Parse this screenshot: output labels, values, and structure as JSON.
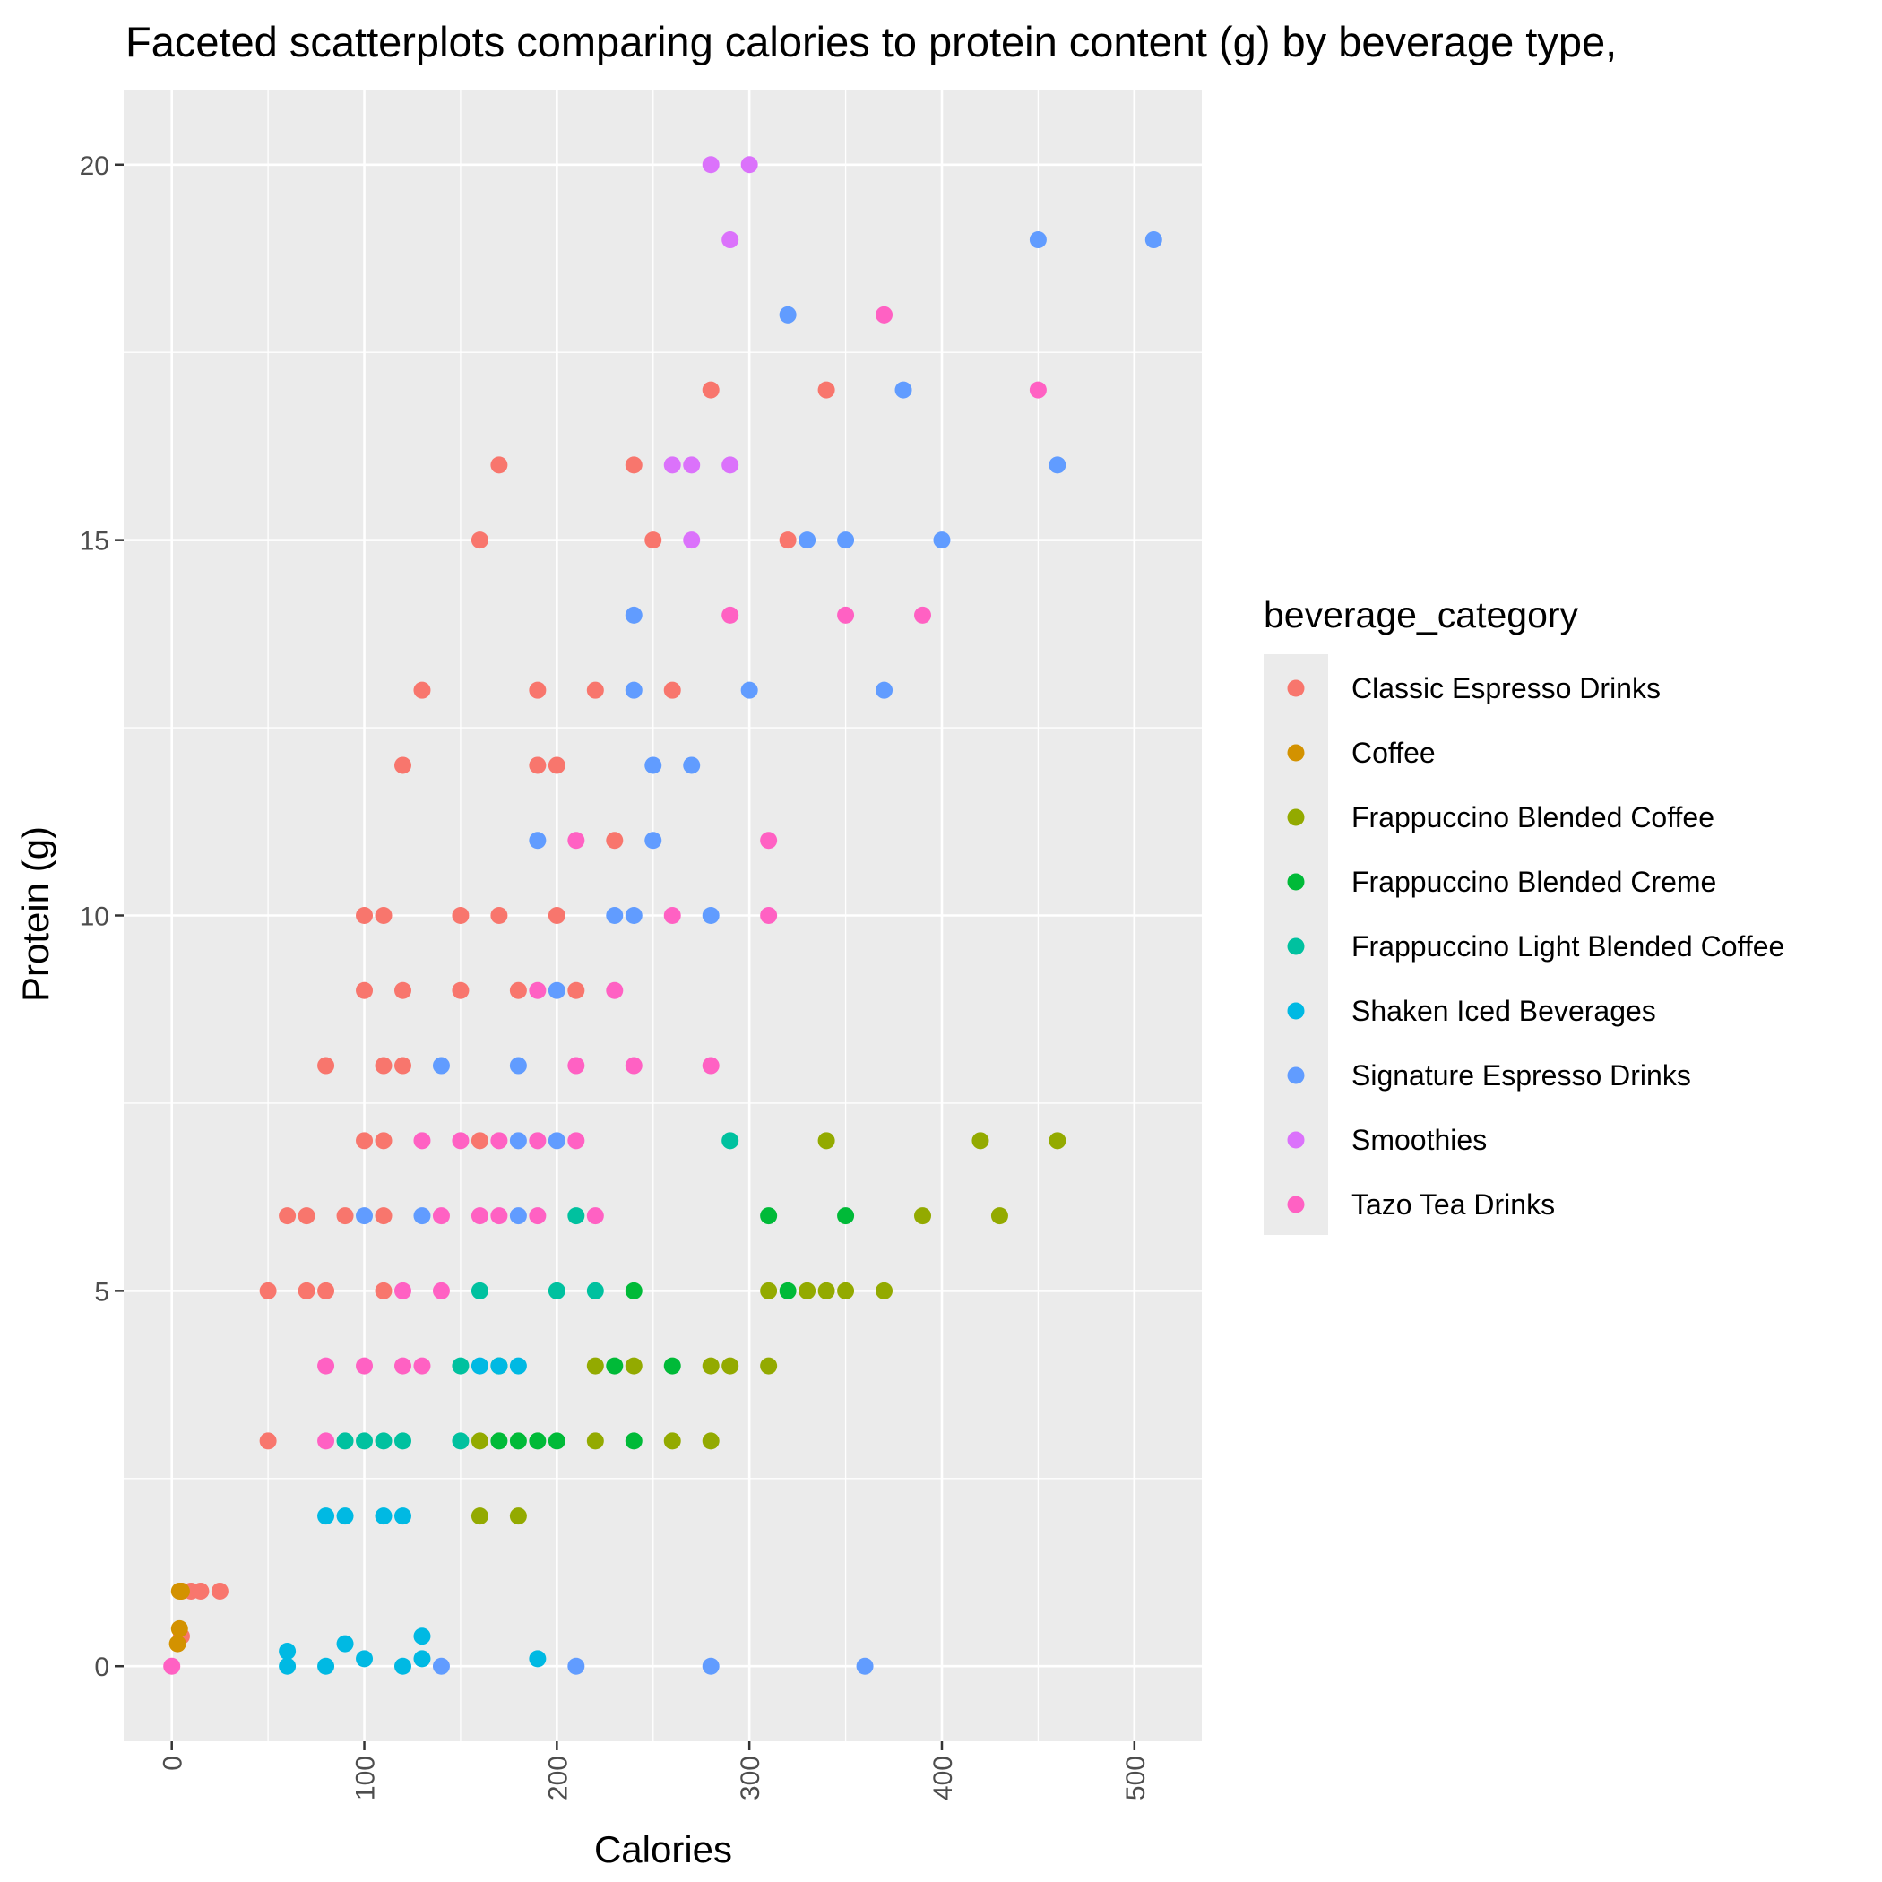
{
  "chart_data": {
    "type": "scatter",
    "title": "Faceted scatterplots comparing calories to protein content (g) by beverage type,",
    "xlabel": "Calories",
    "ylabel": "Protein (g)",
    "xlim": [
      -25,
      535
    ],
    "ylim": [
      -1,
      21
    ],
    "x_ticks": [
      0,
      100,
      200,
      300,
      400,
      500
    ],
    "x_tick_labels": [
      "0",
      "100",
      "200",
      "300",
      "400",
      "500"
    ],
    "y_ticks": [
      0,
      5,
      10,
      15,
      20
    ],
    "y_tick_labels": [
      "0",
      "5",
      "10",
      "15",
      "20"
    ],
    "grid": true,
    "legend": {
      "title": "beverage_category",
      "placement": "right"
    },
    "series": [
      {
        "name": "Classic Espresso Drinks",
        "color": "#F8766D",
        "points": [
          [
            5,
            1
          ],
          [
            10,
            1
          ],
          [
            15,
            1
          ],
          [
            25,
            1
          ],
          [
            5,
            0.4
          ],
          [
            50,
            5
          ],
          [
            50,
            3
          ],
          [
            60,
            6
          ],
          [
            70,
            6
          ],
          [
            70,
            5
          ],
          [
            80,
            5
          ],
          [
            80,
            8
          ],
          [
            90,
            6
          ],
          [
            100,
            10
          ],
          [
            100,
            9
          ],
          [
            100,
            7
          ],
          [
            110,
            10
          ],
          [
            110,
            8
          ],
          [
            110,
            7
          ],
          [
            110,
            6
          ],
          [
            110,
            5
          ],
          [
            120,
            12
          ],
          [
            120,
            9
          ],
          [
            120,
            8
          ],
          [
            130,
            13
          ],
          [
            150,
            10
          ],
          [
            150,
            9
          ],
          [
            160,
            15
          ],
          [
            160,
            7
          ],
          [
            170,
            16
          ],
          [
            170,
            10
          ],
          [
            180,
            9
          ],
          [
            190,
            13
          ],
          [
            190,
            12
          ],
          [
            200,
            12
          ],
          [
            200,
            10
          ],
          [
            210,
            9
          ],
          [
            220,
            13
          ],
          [
            230,
            11
          ],
          [
            240,
            16
          ],
          [
            250,
            15
          ],
          [
            260,
            13
          ],
          [
            280,
            17
          ],
          [
            320,
            15
          ],
          [
            340,
            17
          ]
        ]
      },
      {
        "name": "Coffee",
        "color": "#D39200",
        "points": [
          [
            3,
            0.3
          ],
          [
            4,
            0.5
          ],
          [
            4,
            1
          ],
          [
            5,
            1
          ]
        ]
      },
      {
        "name": "Frappuccino Blended Coffee",
        "color": "#93AA00",
        "points": [
          [
            160,
            3
          ],
          [
            160,
            2
          ],
          [
            180,
            2
          ],
          [
            220,
            4
          ],
          [
            220,
            3
          ],
          [
            240,
            4
          ],
          [
            260,
            3
          ],
          [
            280,
            4
          ],
          [
            280,
            3
          ],
          [
            290,
            4
          ],
          [
            310,
            5
          ],
          [
            310,
            4
          ],
          [
            330,
            5
          ],
          [
            340,
            7
          ],
          [
            340,
            5
          ],
          [
            350,
            5
          ],
          [
            370,
            5
          ],
          [
            390,
            6
          ],
          [
            420,
            7
          ],
          [
            430,
            6
          ],
          [
            460,
            7
          ]
        ]
      },
      {
        "name": "Frappuccino Blended Creme",
        "color": "#00BA38",
        "points": [
          [
            170,
            4
          ],
          [
            170,
            3
          ],
          [
            180,
            3
          ],
          [
            190,
            3
          ],
          [
            200,
            3
          ],
          [
            230,
            4
          ],
          [
            240,
            5
          ],
          [
            240,
            3
          ],
          [
            260,
            4
          ],
          [
            310,
            6
          ],
          [
            320,
            5
          ],
          [
            350,
            6
          ]
        ]
      },
      {
        "name": "Frappuccino Light Blended Coffee",
        "color": "#00C19F",
        "points": [
          [
            90,
            3
          ],
          [
            100,
            3
          ],
          [
            110,
            3
          ],
          [
            120,
            3
          ],
          [
            150,
            4
          ],
          [
            150,
            3
          ],
          [
            160,
            5
          ],
          [
            200,
            5
          ],
          [
            210,
            6
          ],
          [
            220,
            5
          ],
          [
            290,
            7
          ]
        ]
      },
      {
        "name": "Shaken Iced Beverages",
        "color": "#00B9E3",
        "points": [
          [
            60,
            0.2
          ],
          [
            60,
            0
          ],
          [
            80,
            2
          ],
          [
            80,
            0
          ],
          [
            90,
            2
          ],
          [
            90,
            0.3
          ],
          [
            100,
            0.1
          ],
          [
            110,
            2
          ],
          [
            120,
            2
          ],
          [
            120,
            0
          ],
          [
            130,
            0.4
          ],
          [
            130,
            0.1
          ],
          [
            160,
            4
          ],
          [
            170,
            4
          ],
          [
            180,
            4
          ],
          [
            190,
            0.1
          ]
        ]
      },
      {
        "name": "Signature Espresso Drinks",
        "color": "#619CFF",
        "points": [
          [
            100,
            6
          ],
          [
            130,
            6
          ],
          [
            140,
            8
          ],
          [
            140,
            0
          ],
          [
            180,
            8
          ],
          [
            180,
            7
          ],
          [
            180,
            6
          ],
          [
            190,
            11
          ],
          [
            200,
            9
          ],
          [
            200,
            7
          ],
          [
            210,
            0
          ],
          [
            230,
            10
          ],
          [
            240,
            14
          ],
          [
            240,
            13
          ],
          [
            240,
            10
          ],
          [
            250,
            12
          ],
          [
            250,
            11
          ],
          [
            270,
            12
          ],
          [
            280,
            10
          ],
          [
            280,
            0
          ],
          [
            300,
            13
          ],
          [
            320,
            18
          ],
          [
            330,
            15
          ],
          [
            350,
            15
          ],
          [
            360,
            0
          ],
          [
            370,
            13
          ],
          [
            380,
            17
          ],
          [
            400,
            15
          ],
          [
            450,
            19
          ],
          [
            460,
            16
          ],
          [
            510,
            19
          ]
        ]
      },
      {
        "name": "Smoothies",
        "color": "#DB72FB",
        "points": [
          [
            260,
            16
          ],
          [
            270,
            16
          ],
          [
            270,
            15
          ],
          [
            280,
            20
          ],
          [
            290,
            19
          ],
          [
            290,
            16
          ],
          [
            300,
            20
          ]
        ]
      },
      {
        "name": "Tazo Tea Drinks",
        "color": "#FF61C3",
        "points": [
          [
            0,
            0
          ],
          [
            80,
            4
          ],
          [
            80,
            3
          ],
          [
            100,
            4
          ],
          [
            120,
            5
          ],
          [
            120,
            4
          ],
          [
            130,
            7
          ],
          [
            130,
            4
          ],
          [
            140,
            6
          ],
          [
            140,
            5
          ],
          [
            150,
            7
          ],
          [
            160,
            6
          ],
          [
            170,
            7
          ],
          [
            170,
            6
          ],
          [
            190,
            9
          ],
          [
            190,
            7
          ],
          [
            190,
            6
          ],
          [
            210,
            11
          ],
          [
            210,
            8
          ],
          [
            210,
            7
          ],
          [
            220,
            6
          ],
          [
            230,
            9
          ],
          [
            240,
            8
          ],
          [
            260,
            10
          ],
          [
            280,
            8
          ],
          [
            290,
            14
          ],
          [
            310,
            11
          ],
          [
            310,
            10
          ],
          [
            350,
            14
          ],
          [
            370,
            18
          ],
          [
            390,
            14
          ],
          [
            450,
            17
          ]
        ]
      }
    ]
  }
}
